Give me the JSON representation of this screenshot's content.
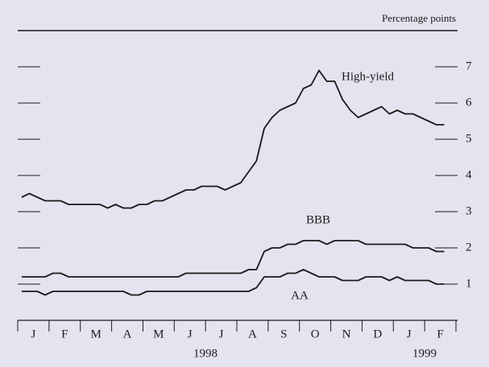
{
  "chart_data": {
    "type": "line",
    "title": "Percentage points",
    "categories": [
      null,
      null,
      "J",
      null,
      null,
      null,
      "F",
      null,
      null,
      null,
      "M",
      null,
      null,
      null,
      "A",
      null,
      null,
      null,
      "M",
      null,
      null,
      null,
      "J",
      null,
      null,
      null,
      "J",
      null,
      null,
      null,
      "A",
      null,
      null,
      null,
      "S",
      null,
      null,
      null,
      "O",
      null,
      null,
      null,
      "N",
      null,
      null,
      null,
      "D",
      null,
      null,
      null,
      "J",
      null,
      null,
      null,
      "F",
      null
    ],
    "year_labels": [
      "1998",
      "1999"
    ],
    "series": [
      {
        "name": "High-yield",
        "color": "#1a1a1a",
        "values": [
          3.4,
          3.5,
          3.4,
          3.3,
          3.3,
          3.3,
          3.2,
          3.2,
          3.2,
          3.2,
          3.2,
          3.1,
          3.2,
          3.1,
          3.1,
          3.2,
          3.2,
          3.3,
          3.3,
          3.4,
          3.5,
          3.6,
          3.6,
          3.7,
          3.7,
          3.7,
          3.6,
          3.7,
          3.8,
          4.1,
          4.4,
          5.3,
          5.6,
          5.8,
          5.9,
          6.0,
          6.4,
          6.5,
          6.9,
          6.6,
          6.6,
          6.1,
          5.8,
          5.6,
          5.7,
          5.8,
          5.9,
          5.7,
          5.8,
          5.7,
          5.7,
          5.6,
          5.5,
          5.4,
          5.4,
          null
        ]
      },
      {
        "name": "BBB",
        "color": "#1a1a1a",
        "values": [
          1.2,
          1.2,
          1.2,
          1.2,
          1.3,
          1.3,
          1.2,
          1.2,
          1.2,
          1.2,
          1.2,
          1.2,
          1.2,
          1.2,
          1.2,
          1.2,
          1.2,
          1.2,
          1.2,
          1.2,
          1.2,
          1.3,
          1.3,
          1.3,
          1.3,
          1.3,
          1.3,
          1.3,
          1.3,
          1.4,
          1.4,
          1.9,
          2.0,
          2.0,
          2.1,
          2.1,
          2.2,
          2.2,
          2.2,
          2.1,
          2.2,
          2.2,
          2.2,
          2.2,
          2.1,
          2.1,
          2.1,
          2.1,
          2.1,
          2.1,
          2.0,
          2.0,
          2.0,
          1.9,
          1.9,
          null
        ]
      },
      {
        "name": "AA",
        "color": "#1a1a1a",
        "values": [
          0.8,
          0.8,
          0.8,
          0.7,
          0.8,
          0.8,
          0.8,
          0.8,
          0.8,
          0.8,
          0.8,
          0.8,
          0.8,
          0.8,
          0.7,
          0.7,
          0.8,
          0.8,
          0.8,
          0.8,
          0.8,
          0.8,
          0.8,
          0.8,
          0.8,
          0.8,
          0.8,
          0.8,
          0.8,
          0.8,
          0.9,
          1.2,
          1.2,
          1.2,
          1.3,
          1.3,
          1.4,
          1.3,
          1.2,
          1.2,
          1.2,
          1.1,
          1.1,
          1.1,
          1.2,
          1.2,
          1.2,
          1.1,
          1.2,
          1.1,
          1.1,
          1.1,
          1.1,
          1.0,
          1.0,
          null
        ]
      }
    ],
    "ylim": [
      0,
      8
    ],
    "yticks": [
      1,
      2,
      3,
      4,
      5,
      6,
      7
    ]
  }
}
